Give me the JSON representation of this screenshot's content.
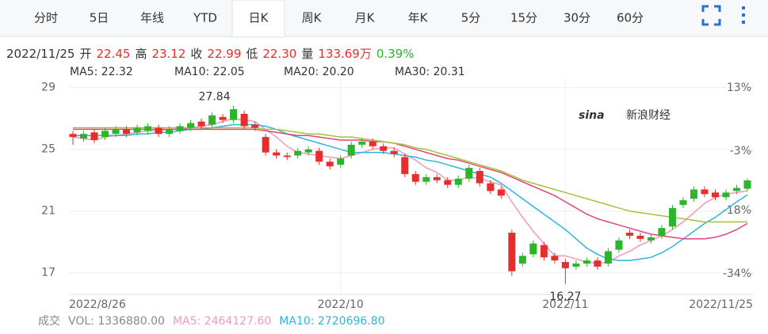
{
  "tabs": {
    "items": [
      "分时",
      "5日",
      "年线",
      "YTD",
      "日K",
      "周K",
      "月K",
      "年K",
      "5分",
      "15分",
      "30分",
      "60分"
    ],
    "active": 4
  },
  "quote": {
    "date": "2022/11/25",
    "items": [
      {
        "label": "开",
        "value": "22.45"
      },
      {
        "label": "高",
        "value": "23.12"
      },
      {
        "label": "收",
        "value": "22.99"
      },
      {
        "label": "低",
        "value": "22.30"
      },
      {
        "label": "量",
        "value": "133.69万"
      }
    ],
    "change": "0.39%"
  },
  "chart_data": {
    "type": "candlestick",
    "watermark": [
      "sina",
      "新浪财经"
    ],
    "up_color": "#2bb52b",
    "down_color": "#e62e2e",
    "categories": [
      "2022/8/26",
      null,
      null,
      null,
      null,
      null,
      null,
      null,
      null,
      null,
      null,
      null,
      null,
      null,
      null,
      null,
      null,
      null,
      null,
      null,
      null,
      null,
      null,
      null,
      null,
      "2022/10",
      null,
      null,
      null,
      null,
      null,
      null,
      null,
      null,
      null,
      null,
      null,
      null,
      null,
      null,
      null,
      null,
      null,
      null,
      null,
      null,
      "2022/11",
      null,
      null,
      null,
      null,
      null,
      null,
      null,
      null,
      null,
      null,
      null,
      null,
      null,
      null,
      null,
      null,
      "2022/11/25"
    ],
    "open": [
      26.0,
      25.7,
      26.1,
      25.8,
      26.0,
      26.3,
      26.1,
      26.2,
      26.4,
      26.0,
      26.2,
      26.4,
      26.8,
      26.6,
      27.1,
      26.9,
      27.3,
      26.6,
      25.8,
      24.8,
      24.6,
      24.6,
      24.8,
      24.9,
      24.2,
      24.0,
      24.6,
      25.3,
      25.5,
      25.2,
      24.9,
      24.5,
      23.4,
      22.9,
      23.2,
      23.0,
      22.7,
      23.1,
      23.6,
      22.8,
      22.4,
      19.6,
      17.6,
      18.2,
      18.8,
      18.1,
      17.7,
      17.4,
      17.6,
      17.8,
      17.6,
      18.5,
      19.6,
      19.4,
      19.1,
      19.4,
      20.0,
      21.4,
      21.8,
      22.4,
      22.2,
      21.9,
      22.3,
      22.45
    ],
    "high": [
      26.2,
      26.2,
      26.3,
      26.4,
      26.5,
      26.5,
      26.6,
      26.7,
      26.6,
      26.5,
      26.7,
      26.9,
      27.0,
      27.4,
      27.3,
      27.84,
      27.5,
      26.8,
      26.0,
      25.0,
      24.8,
      25.1,
      25.2,
      25.1,
      24.4,
      24.6,
      25.5,
      25.7,
      25.7,
      25.4,
      25.1,
      24.7,
      23.6,
      23.4,
      23.4,
      23.2,
      23.3,
      24.0,
      23.8,
      23.0,
      22.6,
      19.8,
      18.3,
      19.1,
      19.0,
      18.3,
      17.9,
      17.8,
      18.0,
      18.0,
      18.6,
      19.3,
      19.8,
      19.6,
      19.5,
      20.1,
      21.4,
      21.9,
      22.6,
      22.6,
      22.4,
      22.4,
      22.7,
      23.12
    ],
    "low": [
      25.3,
      25.5,
      25.4,
      25.6,
      25.8,
      25.8,
      25.9,
      26.0,
      25.8,
      25.8,
      26.0,
      26.2,
      26.3,
      26.4,
      26.7,
      26.7,
      26.3,
      26.2,
      24.6,
      24.4,
      24.3,
      24.4,
      24.6,
      24.0,
      23.7,
      23.8,
      24.4,
      25.1,
      25.0,
      24.7,
      24.5,
      23.2,
      22.7,
      22.7,
      22.8,
      22.5,
      22.5,
      22.9,
      22.6,
      22.1,
      21.8,
      16.8,
      17.4,
      18.0,
      17.8,
      17.6,
      16.27,
      17.2,
      17.4,
      17.2,
      17.4,
      18.3,
      19.2,
      19.0,
      18.9,
      19.2,
      19.8,
      21.2,
      21.6,
      21.9,
      21.7,
      21.7,
      22.1,
      22.3
    ],
    "close": [
      25.8,
      26.0,
      25.6,
      26.2,
      26.3,
      26.0,
      26.4,
      26.5,
      26.0,
      26.3,
      26.5,
      26.7,
      26.5,
      27.2,
      26.9,
      27.6,
      26.5,
      26.4,
      24.8,
      24.6,
      24.5,
      24.9,
      25.0,
      24.2,
      23.9,
      24.4,
      25.3,
      25.5,
      25.2,
      24.9,
      24.7,
      23.4,
      22.9,
      23.2,
      23.0,
      22.7,
      23.1,
      23.8,
      22.8,
      22.3,
      22.0,
      17.1,
      18.1,
      18.9,
      18.0,
      17.8,
      17.3,
      17.6,
      17.8,
      17.4,
      18.4,
      19.1,
      19.4,
      19.2,
      19.3,
      19.9,
      21.2,
      21.7,
      22.4,
      22.1,
      21.9,
      22.2,
      22.5,
      22.99
    ],
    "high_label_index": 15,
    "low_label_index": 46,
    "series": [
      {
        "label": "MA5: 22.32",
        "color": "#f29ab6",
        "values": [
          25.8,
          25.7,
          25.6,
          25.8,
          25.9,
          26.0,
          26.1,
          26.2,
          26.2,
          26.3,
          26.3,
          26.4,
          26.5,
          26.6,
          26.8,
          27.0,
          26.9,
          26.8,
          26.3,
          25.8,
          25.2,
          24.8,
          24.7,
          24.6,
          24.5,
          24.4,
          24.6,
          24.8,
          25.0,
          25.1,
          25.1,
          24.7,
          24.3,
          23.8,
          23.5,
          23.0,
          23.0,
          23.2,
          23.1,
          22.9,
          22.7,
          21.6,
          20.6,
          19.7,
          18.9,
          18.1,
          18.1,
          17.9,
          17.7,
          17.6,
          17.7,
          18.1,
          18.4,
          18.8,
          19.1,
          19.4,
          19.8,
          20.3,
          20.9,
          21.5,
          21.9,
          22.1,
          22.2,
          22.32
        ]
      },
      {
        "label": "MA10: 22.05",
        "color": "#2fb3e0",
        "values": [
          25.9,
          25.9,
          25.9,
          25.9,
          25.9,
          25.9,
          26.0,
          26.0,
          26.1,
          26.1,
          26.2,
          26.3,
          26.3,
          26.4,
          26.5,
          26.6,
          26.6,
          26.6,
          26.5,
          26.3,
          26.0,
          25.8,
          25.6,
          25.4,
          25.2,
          25.0,
          24.8,
          24.8,
          24.8,
          24.8,
          24.7,
          24.6,
          24.5,
          24.3,
          24.2,
          24.0,
          23.8,
          23.6,
          23.4,
          23.2,
          22.8,
          22.3,
          21.8,
          21.3,
          20.8,
          20.3,
          19.8,
          19.2,
          18.6,
          18.2,
          17.9,
          17.8,
          17.8,
          17.9,
          18.0,
          18.3,
          18.7,
          19.2,
          19.7,
          20.2,
          20.6,
          21.1,
          21.6,
          22.05
        ]
      },
      {
        "label": "MA20: 20.20",
        "color": "#e0457b",
        "values": [
          26.3,
          26.3,
          26.3,
          26.3,
          26.3,
          26.3,
          26.3,
          26.3,
          26.3,
          26.3,
          26.3,
          26.3,
          26.3,
          26.3,
          26.3,
          26.3,
          26.3,
          26.3,
          26.2,
          26.1,
          26.0,
          25.9,
          25.9,
          25.8,
          25.7,
          25.6,
          25.6,
          25.6,
          25.5,
          25.5,
          25.4,
          25.2,
          25.0,
          24.8,
          24.6,
          24.4,
          24.3,
          24.1,
          23.9,
          23.7,
          23.5,
          23.2,
          22.9,
          22.6,
          22.3,
          22.0,
          21.6,
          21.2,
          20.8,
          20.5,
          20.3,
          20.1,
          19.9,
          19.7,
          19.5,
          19.4,
          19.3,
          19.2,
          19.2,
          19.2,
          19.3,
          19.5,
          19.8,
          20.2
        ]
      },
      {
        "label": "MA30: 20.31",
        "color": "#a5c23a",
        "values": [
          26.4,
          26.4,
          26.4,
          26.4,
          26.4,
          26.4,
          26.4,
          26.4,
          26.4,
          26.4,
          26.4,
          26.4,
          26.4,
          26.4,
          26.4,
          26.4,
          26.4,
          26.4,
          26.3,
          26.3,
          26.2,
          26.1,
          26.0,
          26.0,
          25.9,
          25.8,
          25.8,
          25.7,
          25.6,
          25.5,
          25.4,
          25.3,
          25.1,
          25.0,
          24.8,
          24.6,
          24.4,
          24.2,
          24.0,
          23.8,
          23.6,
          23.3,
          23.0,
          22.8,
          22.6,
          22.4,
          22.2,
          22.0,
          21.8,
          21.6,
          21.4,
          21.2,
          21.0,
          20.9,
          20.8,
          20.7,
          20.6,
          20.5,
          20.4,
          20.3,
          20.3,
          20.3,
          20.3,
          20.31
        ]
      }
    ],
    "ylim": [
      15.6,
      29.6
    ],
    "yticks": [
      29,
      25,
      21,
      17
    ],
    "y2lim": [
      -39.2,
      15.4
    ],
    "y2ticks": [
      {
        "value": 13,
        "label": "13%"
      },
      {
        "value": -3,
        "label": "-3%"
      },
      {
        "value": -18,
        "label": "-18%"
      },
      {
        "value": -34,
        "label": "-34%"
      }
    ],
    "grid": true
  },
  "volume_info": [
    {
      "text": "成交",
      "color": "#888"
    },
    {
      "text": "VOL: 1336880.00",
      "color": "#888"
    },
    {
      "text": "MA5: 2464127.60",
      "color": "#f29ab6"
    },
    {
      "text": "MA10: 2720696.80",
      "color": "#2fb3e0"
    }
  ]
}
